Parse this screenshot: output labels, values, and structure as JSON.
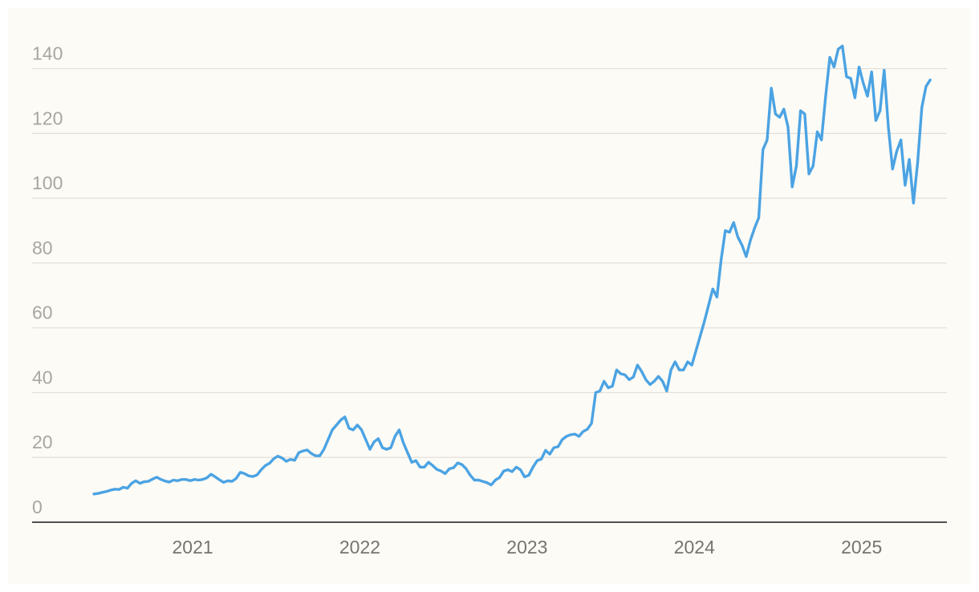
{
  "chart_data": {
    "type": "line",
    "color": "#4ba3e3",
    "grid": true,
    "xlim": [
      2020.04,
      2025.51
    ],
    "xticks": [
      2021,
      2022,
      2023,
      2024,
      2025
    ],
    "ylim": [
      0,
      155
    ],
    "yticks": [
      0,
      20,
      40,
      60,
      80,
      100,
      120,
      140
    ],
    "x": [
      2020.41,
      2020.435,
      2020.46,
      2020.485,
      2020.51,
      2020.535,
      2020.56,
      2020.585,
      2020.61,
      2020.635,
      2020.66,
      2020.685,
      2020.71,
      2020.735,
      2020.76,
      2020.785,
      2020.81,
      2020.835,
      2020.86,
      2020.885,
      2020.91,
      2020.935,
      2020.96,
      2020.985,
      2021.01,
      2021.035,
      2021.06,
      2021.085,
      2021.11,
      2021.135,
      2021.16,
      2021.185,
      2021.21,
      2021.235,
      2021.26,
      2021.285,
      2021.31,
      2021.335,
      2021.36,
      2021.385,
      2021.41,
      2021.435,
      2021.46,
      2021.485,
      2021.51,
      2021.535,
      2021.56,
      2021.585,
      2021.61,
      2021.635,
      2021.66,
      2021.685,
      2021.71,
      2021.735,
      2021.76,
      2021.785,
      2021.81,
      2021.835,
      2021.86,
      2021.885,
      2021.91,
      2021.935,
      2021.96,
      2021.985,
      2022.01,
      2022.035,
      2022.06,
      2022.085,
      2022.11,
      2022.135,
      2022.16,
      2022.185,
      2022.21,
      2022.235,
      2022.26,
      2022.285,
      2022.31,
      2022.335,
      2022.36,
      2022.385,
      2022.41,
      2022.435,
      2022.46,
      2022.485,
      2022.51,
      2022.535,
      2022.56,
      2022.585,
      2022.61,
      2022.635,
      2022.66,
      2022.685,
      2022.71,
      2022.735,
      2022.76,
      2022.785,
      2022.81,
      2022.835,
      2022.86,
      2022.885,
      2022.91,
      2022.935,
      2022.96,
      2022.985,
      2023.01,
      2023.035,
      2023.06,
      2023.085,
      2023.11,
      2023.135,
      2023.16,
      2023.185,
      2023.21,
      2023.235,
      2023.26,
      2023.285,
      2023.31,
      2023.335,
      2023.36,
      2023.385,
      2023.41,
      2023.435,
      2023.46,
      2023.485,
      2023.51,
      2023.535,
      2023.56,
      2023.585,
      2023.61,
      2023.635,
      2023.66,
      2023.685,
      2023.71,
      2023.735,
      2023.76,
      2023.785,
      2023.81,
      2023.835,
      2023.86,
      2023.885,
      2023.91,
      2023.935,
      2023.96,
      2023.985,
      2024.01,
      2024.035,
      2024.06,
      2024.085,
      2024.11,
      2024.135,
      2024.16,
      2024.185,
      2024.21,
      2024.235,
      2024.26,
      2024.285,
      2024.31,
      2024.335,
      2024.36,
      2024.385,
      2024.41,
      2024.435,
      2024.46,
      2024.485,
      2024.51,
      2024.535,
      2024.56,
      2024.585,
      2024.61,
      2024.635,
      2024.66,
      2024.685,
      2024.71,
      2024.735,
      2024.76,
      2024.785,
      2024.81,
      2024.835,
      2024.86,
      2024.885,
      2024.91,
      2024.935,
      2024.96,
      2024.985,
      2025.01,
      2025.035,
      2025.06,
      2025.085,
      2025.11,
      2025.135,
      2025.16,
      2025.185,
      2025.21,
      2025.235,
      2025.26,
      2025.285,
      2025.31,
      2025.335,
      2025.36,
      2025.385,
      2025.41
    ],
    "values": [
      8.7,
      8.9,
      9.2,
      9.5,
      9.9,
      10.2,
      10.1,
      10.8,
      10.5,
      12,
      12.8,
      12,
      12.5,
      12.6,
      13.3,
      13.9,
      13.2,
      12.7,
      12.4,
      13,
      12.8,
      13.2,
      13.2,
      12.8,
      13.2,
      13,
      13.2,
      13.7,
      14.8,
      14,
      13.1,
      12.3,
      12.8,
      12.6,
      13.5,
      15.4,
      15,
      14.3,
      14.1,
      14.6,
      16.2,
      17.5,
      18.2,
      19.6,
      20.4,
      19.8,
      18.8,
      19.4,
      19.1,
      21.5,
      22,
      22.3,
      21.2,
      20.5,
      20.5,
      22.5,
      25.5,
      28.5,
      30,
      31.5,
      32.5,
      29,
      28.5,
      30,
      28.5,
      25.5,
      22.5,
      24.8,
      25.8,
      23,
      22.5,
      23,
      26.5,
      28.5,
      24.5,
      21.5,
      18.5,
      19,
      17,
      17,
      18.5,
      17.5,
      16.3,
      15.8,
      15,
      16.5,
      16.8,
      18.3,
      17.8,
      16.5,
      14.5,
      13,
      13,
      12.6,
      12.2,
      11.5,
      13,
      13.8,
      15.8,
      16.2,
      15.6,
      17,
      16.2,
      14,
      14.5,
      17,
      19,
      19.5,
      22.2,
      21,
      23,
      23.3,
      25.5,
      26.5,
      27,
      27.2,
      26.5,
      28,
      28.7,
      30.5,
      40,
      40.5,
      43.5,
      41.5,
      42,
      47,
      45.8,
      45.5,
      44,
      44.8,
      48.5,
      46.5,
      44,
      42.5,
      43.5,
      45,
      43.5,
      40.5,
      47,
      49.5,
      47,
      47,
      49.5,
      48.5,
      53,
      57.5,
      62,
      67,
      72,
      69.5,
      81,
      90,
      89.5,
      92.5,
      88,
      85.5,
      82,
      87,
      90.8,
      94,
      115,
      118,
      134,
      126,
      125,
      127.5,
      122,
      103.5,
      110,
      127,
      126,
      107.5,
      110,
      120.5,
      118,
      131.5,
      143.5,
      140.5,
      146,
      147,
      137.5,
      137,
      131,
      140.5,
      135.5,
      131.5,
      139,
      124,
      127,
      139.5,
      122,
      109,
      114.5,
      118,
      104,
      112,
      98.5,
      111,
      128,
      134.5,
      136.5
    ]
  }
}
